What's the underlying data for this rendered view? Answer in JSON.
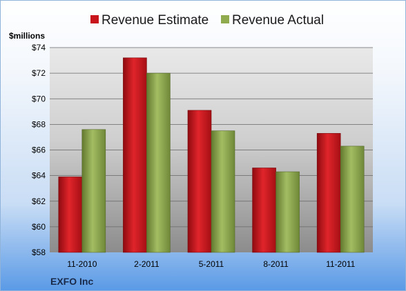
{
  "chart_data": {
    "type": "bar",
    "categories": [
      "11-2010",
      "2-2011",
      "5-2011",
      "8-2011",
      "11-2011"
    ],
    "series": [
      {
        "name": "Revenue Estimate",
        "values": [
          63.9,
          73.2,
          69.1,
          64.6,
          67.3
        ]
      },
      {
        "name": "Revenue Actual",
        "values": [
          67.6,
          72.0,
          67.5,
          64.3,
          66.3
        ]
      }
    ],
    "ylabel": "$millions",
    "ylim": [
      58,
      74
    ],
    "yticks": [
      58,
      60,
      62,
      64,
      66,
      68,
      70,
      72,
      74
    ],
    "ytick_labels": [
      "$58",
      "$60",
      "$62",
      "$64",
      "$66",
      "$68",
      "$70",
      "$72",
      "$74"
    ],
    "grid": true,
    "legend_position": "top"
  },
  "colors": {
    "estimate": "#c8151b",
    "actual": "#8fab4e"
  },
  "company": "EXFO Inc"
}
